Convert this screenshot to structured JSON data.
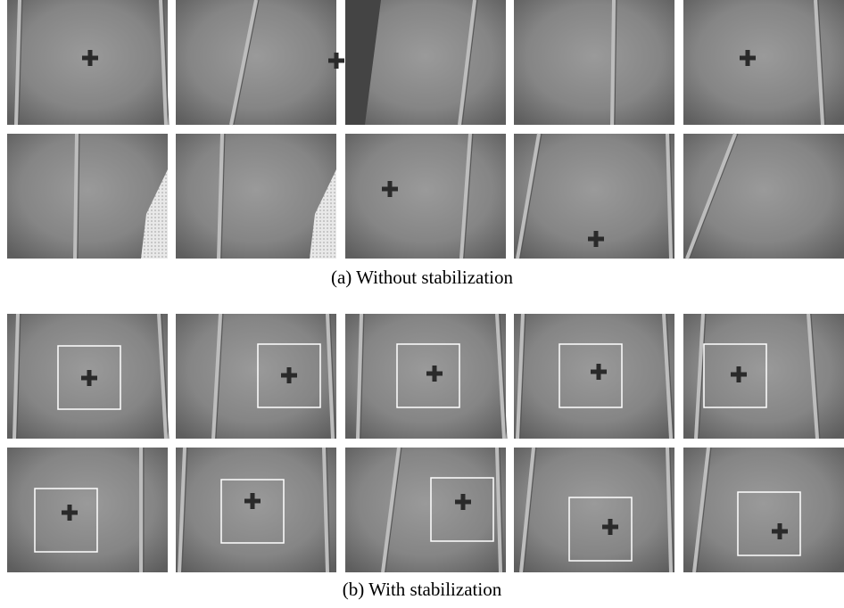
{
  "figure": {
    "captions": [
      "(a) Without stabilization",
      "(b) With stabilization"
    ]
  }
}
